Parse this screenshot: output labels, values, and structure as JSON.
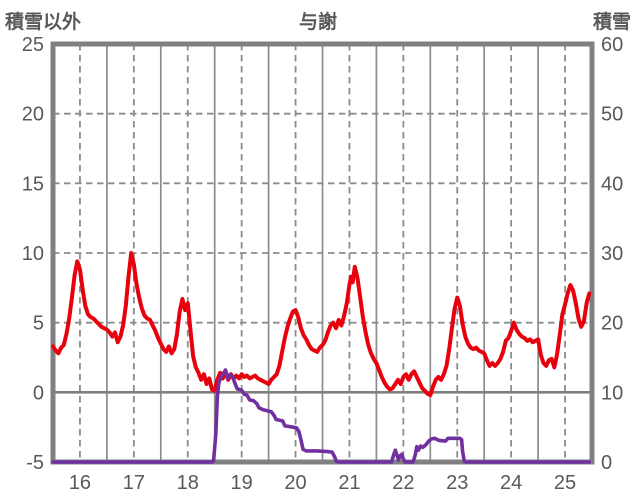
{
  "header": {
    "left_axis_title": "積雪以外",
    "station_title": "与謝",
    "right_axis_title": "積雪"
  },
  "colors": {
    "temperature_line": "#e8000d",
    "snow_line": "#7030a0",
    "frame": "#808080",
    "grid": "#8c8c8c",
    "zero_line": "#808080",
    "text": "#595959",
    "background": "#ffffff"
  },
  "chart_data": {
    "type": "line",
    "title": "与謝",
    "x_axis": {
      "range": [
        16,
        26
      ],
      "ticks": [
        16,
        17,
        18,
        19,
        20,
        21,
        22,
        23,
        24,
        25
      ],
      "tick_anchor": "day_center",
      "grid_solid_at_midnight": true,
      "grid_dashed_at_noon": true
    },
    "left_axis": {
      "title": "積雪以外",
      "range": [
        -5,
        25
      ],
      "ticks": [
        25,
        20,
        15,
        10,
        5,
        0,
        -5
      ],
      "dashed_grid_at": [
        20,
        15,
        10,
        5
      ],
      "solid_line_at": 0
    },
    "right_axis": {
      "title": "積雪",
      "range": [
        0,
        60
      ],
      "ticks": [
        60,
        50,
        40,
        30,
        20,
        10,
        0
      ]
    },
    "series": [
      {
        "name": "積雪以外",
        "axis": "left",
        "color": "#e8000d",
        "width": 4,
        "points": [
          [
            16.0,
            3.3
          ],
          [
            16.05,
            3.0
          ],
          [
            16.1,
            2.8
          ],
          [
            16.15,
            3.2
          ],
          [
            16.2,
            3.4
          ],
          [
            16.25,
            4.2
          ],
          [
            16.3,
            5.3
          ],
          [
            16.35,
            6.8
          ],
          [
            16.4,
            8.4
          ],
          [
            16.45,
            9.4
          ],
          [
            16.5,
            8.8
          ],
          [
            16.55,
            7.4
          ],
          [
            16.6,
            6.2
          ],
          [
            16.65,
            5.6
          ],
          [
            16.7,
            5.4
          ],
          [
            16.75,
            5.3
          ],
          [
            16.8,
            5.1
          ],
          [
            16.85,
            4.9
          ],
          [
            16.9,
            4.7
          ],
          [
            16.95,
            4.6
          ],
          [
            17.0,
            4.5
          ],
          [
            17.05,
            4.3
          ],
          [
            17.1,
            4.0
          ],
          [
            17.15,
            4.3
          ],
          [
            17.2,
            3.6
          ],
          [
            17.25,
            4.0
          ],
          [
            17.3,
            4.8
          ],
          [
            17.35,
            6.2
          ],
          [
            17.4,
            8.3
          ],
          [
            17.45,
            10.0
          ],
          [
            17.5,
            9.2
          ],
          [
            17.55,
            7.8
          ],
          [
            17.6,
            6.8
          ],
          [
            17.65,
            6.0
          ],
          [
            17.7,
            5.5
          ],
          [
            17.75,
            5.3
          ],
          [
            17.8,
            5.2
          ],
          [
            17.85,
            4.8
          ],
          [
            17.9,
            4.4
          ],
          [
            17.95,
            3.9
          ],
          [
            18.0,
            3.5
          ],
          [
            18.05,
            3.1
          ],
          [
            18.1,
            2.9
          ],
          [
            18.15,
            3.3
          ],
          [
            18.2,
            2.8
          ],
          [
            18.25,
            3.1
          ],
          [
            18.3,
            4.2
          ],
          [
            18.35,
            5.8
          ],
          [
            18.4,
            6.7
          ],
          [
            18.45,
            5.9
          ],
          [
            18.5,
            6.4
          ],
          [
            18.55,
            4.5
          ],
          [
            18.6,
            2.6
          ],
          [
            18.65,
            1.8
          ],
          [
            18.7,
            1.4
          ],
          [
            18.75,
            0.9
          ],
          [
            18.8,
            1.3
          ],
          [
            18.85,
            0.6
          ],
          [
            18.9,
            1.0
          ],
          [
            18.95,
            0.2
          ],
          [
            19.0,
            0.1
          ],
          [
            19.05,
            0.9
          ],
          [
            19.1,
            1.4
          ],
          [
            19.15,
            1.0
          ],
          [
            19.2,
            1.5
          ],
          [
            19.25,
            0.9
          ],
          [
            19.3,
            1.3
          ],
          [
            19.35,
            1.0
          ],
          [
            19.4,
            1.2
          ],
          [
            19.45,
            1.0
          ],
          [
            19.5,
            1.3
          ],
          [
            19.55,
            1.1
          ],
          [
            19.6,
            1.2
          ],
          [
            19.65,
            1.0
          ],
          [
            19.7,
            1.1
          ],
          [
            19.75,
            1.2
          ],
          [
            19.8,
            1.0
          ],
          [
            19.85,
            0.9
          ],
          [
            19.9,
            0.8
          ],
          [
            19.95,
            0.7
          ],
          [
            20.0,
            0.6
          ],
          [
            20.05,
            0.9
          ],
          [
            20.1,
            1.1
          ],
          [
            20.15,
            1.3
          ],
          [
            20.2,
            1.9
          ],
          [
            20.25,
            2.9
          ],
          [
            20.3,
            3.9
          ],
          [
            20.35,
            4.7
          ],
          [
            20.4,
            5.3
          ],
          [
            20.45,
            5.8
          ],
          [
            20.5,
            5.9
          ],
          [
            20.55,
            5.4
          ],
          [
            20.6,
            4.6
          ],
          [
            20.65,
            4.1
          ],
          [
            20.7,
            3.8
          ],
          [
            20.75,
            3.4
          ],
          [
            20.8,
            3.1
          ],
          [
            20.85,
            3.0
          ],
          [
            20.9,
            2.9
          ],
          [
            20.95,
            3.2
          ],
          [
            21.0,
            3.4
          ],
          [
            21.05,
            3.7
          ],
          [
            21.1,
            4.3
          ],
          [
            21.15,
            4.8
          ],
          [
            21.2,
            5.0
          ],
          [
            21.25,
            4.6
          ],
          [
            21.3,
            5.2
          ],
          [
            21.35,
            4.8
          ],
          [
            21.4,
            5.5
          ],
          [
            21.45,
            6.4
          ],
          [
            21.5,
            7.7
          ],
          [
            21.53,
            8.3
          ],
          [
            21.56,
            7.9
          ],
          [
            21.6,
            9.0
          ],
          [
            21.65,
            8.2
          ],
          [
            21.7,
            6.8
          ],
          [
            21.75,
            5.4
          ],
          [
            21.8,
            4.3
          ],
          [
            21.85,
            3.4
          ],
          [
            21.9,
            2.8
          ],
          [
            21.95,
            2.4
          ],
          [
            22.0,
            2.1
          ],
          [
            22.05,
            1.6
          ],
          [
            22.1,
            1.1
          ],
          [
            22.15,
            0.7
          ],
          [
            22.2,
            0.4
          ],
          [
            22.25,
            0.2
          ],
          [
            22.3,
            0.3
          ],
          [
            22.35,
            0.6
          ],
          [
            22.4,
            0.9
          ],
          [
            22.45,
            0.6
          ],
          [
            22.5,
            1.1
          ],
          [
            22.55,
            1.3
          ],
          [
            22.6,
            0.9
          ],
          [
            22.65,
            1.3
          ],
          [
            22.7,
            1.5
          ],
          [
            22.75,
            1.1
          ],
          [
            22.8,
            0.7
          ],
          [
            22.85,
            0.3
          ],
          [
            22.9,
            0.1
          ],
          [
            22.95,
            -0.1
          ],
          [
            23.0,
            -0.2
          ],
          [
            23.05,
            0.4
          ],
          [
            23.1,
            0.9
          ],
          [
            23.15,
            1.1
          ],
          [
            23.2,
            0.9
          ],
          [
            23.25,
            1.3
          ],
          [
            23.3,
            1.9
          ],
          [
            23.35,
            3.1
          ],
          [
            23.4,
            4.6
          ],
          [
            23.45,
            6.0
          ],
          [
            23.5,
            6.8
          ],
          [
            23.55,
            6.2
          ],
          [
            23.6,
            4.9
          ],
          [
            23.65,
            4.0
          ],
          [
            23.7,
            3.5
          ],
          [
            23.75,
            3.2
          ],
          [
            23.8,
            3.1
          ],
          [
            23.85,
            3.2
          ],
          [
            23.9,
            3.0
          ],
          [
            23.95,
            2.9
          ],
          [
            24.0,
            2.8
          ],
          [
            24.05,
            2.3
          ],
          [
            24.1,
            1.9
          ],
          [
            24.15,
            2.1
          ],
          [
            24.2,
            1.9
          ],
          [
            24.25,
            2.1
          ],
          [
            24.3,
            2.4
          ],
          [
            24.35,
            2.9
          ],
          [
            24.4,
            3.7
          ],
          [
            24.45,
            3.9
          ],
          [
            24.5,
            4.4
          ],
          [
            24.55,
            5.0
          ],
          [
            24.6,
            4.5
          ],
          [
            24.65,
            4.2
          ],
          [
            24.7,
            4.0
          ],
          [
            24.75,
            3.9
          ],
          [
            24.8,
            3.7
          ],
          [
            24.85,
            3.8
          ],
          [
            24.9,
            3.6
          ],
          [
            24.95,
            3.7
          ],
          [
            25.0,
            3.8
          ],
          [
            25.05,
            2.7
          ],
          [
            25.1,
            2.1
          ],
          [
            25.15,
            1.9
          ],
          [
            25.2,
            2.3
          ],
          [
            25.25,
            2.4
          ],
          [
            25.3,
            1.8
          ],
          [
            25.35,
            2.7
          ],
          [
            25.4,
            4.1
          ],
          [
            25.45,
            5.6
          ],
          [
            25.5,
            6.3
          ],
          [
            25.55,
            7.1
          ],
          [
            25.6,
            7.7
          ],
          [
            25.65,
            7.3
          ],
          [
            25.7,
            6.4
          ],
          [
            25.75,
            5.3
          ],
          [
            25.8,
            4.7
          ],
          [
            25.85,
            5.1
          ],
          [
            25.9,
            6.4
          ],
          [
            25.95,
            7.1
          ]
        ]
      },
      {
        "name": "積雪",
        "axis": "right",
        "color": "#7030a0",
        "width": 3.6,
        "points": [
          [
            16.0,
            0
          ],
          [
            18.95,
            0
          ],
          [
            18.98,
            0.2
          ],
          [
            19.02,
            4.0
          ],
          [
            19.05,
            9.5
          ],
          [
            19.08,
            11.5
          ],
          [
            19.12,
            12.2
          ],
          [
            19.16,
            12.7
          ],
          [
            19.2,
            13.2
          ],
          [
            19.24,
            12.0
          ],
          [
            19.28,
            12.5
          ],
          [
            19.33,
            12.3
          ],
          [
            19.38,
            11.2
          ],
          [
            19.42,
            10.5
          ],
          [
            19.5,
            10.3
          ],
          [
            19.55,
            9.7
          ],
          [
            19.6,
            9.6
          ],
          [
            19.65,
            8.9
          ],
          [
            19.72,
            8.8
          ],
          [
            19.78,
            8.4
          ],
          [
            19.82,
            7.8
          ],
          [
            19.9,
            7.5
          ],
          [
            20.0,
            7.3
          ],
          [
            20.05,
            7.2
          ],
          [
            20.1,
            6.7
          ],
          [
            20.14,
            6.1
          ],
          [
            20.2,
            6.0
          ],
          [
            20.26,
            5.9
          ],
          [
            20.3,
            5.2
          ],
          [
            20.38,
            5.1
          ],
          [
            20.45,
            5.0
          ],
          [
            20.52,
            4.9
          ],
          [
            20.56,
            4.4
          ],
          [
            20.6,
            3.2
          ],
          [
            20.64,
            1.8
          ],
          [
            20.7,
            1.6
          ],
          [
            20.9,
            1.6
          ],
          [
            21.1,
            1.5
          ],
          [
            21.18,
            1.4
          ],
          [
            21.22,
            0.8
          ],
          [
            21.26,
            0.1
          ],
          [
            21.3,
            0
          ],
          [
            22.28,
            0
          ],
          [
            22.32,
            1.0
          ],
          [
            22.35,
            1.7
          ],
          [
            22.38,
            1.0
          ],
          [
            22.41,
            0.3
          ],
          [
            22.44,
            0.9
          ],
          [
            22.47,
            1.1
          ],
          [
            22.5,
            0.4
          ],
          [
            22.53,
            0
          ],
          [
            22.68,
            0
          ],
          [
            22.72,
            1.0
          ],
          [
            22.75,
            2.2
          ],
          [
            22.78,
            1.7
          ],
          [
            22.82,
            2.3
          ],
          [
            22.86,
            2.1
          ],
          [
            22.92,
            2.5
          ],
          [
            22.97,
            3.0
          ],
          [
            23.02,
            3.3
          ],
          [
            23.08,
            3.4
          ],
          [
            23.16,
            3.1
          ],
          [
            23.28,
            3.0
          ],
          [
            23.33,
            3.4
          ],
          [
            23.42,
            3.4
          ],
          [
            23.55,
            3.4
          ],
          [
            23.58,
            3.2
          ],
          [
            23.6,
            1.5
          ],
          [
            23.63,
            0.1
          ],
          [
            23.66,
            0
          ],
          [
            25.95,
            0
          ]
        ]
      }
    ],
    "layout": {
      "grid": true,
      "legend": "none",
      "plot_frame": true
    }
  }
}
